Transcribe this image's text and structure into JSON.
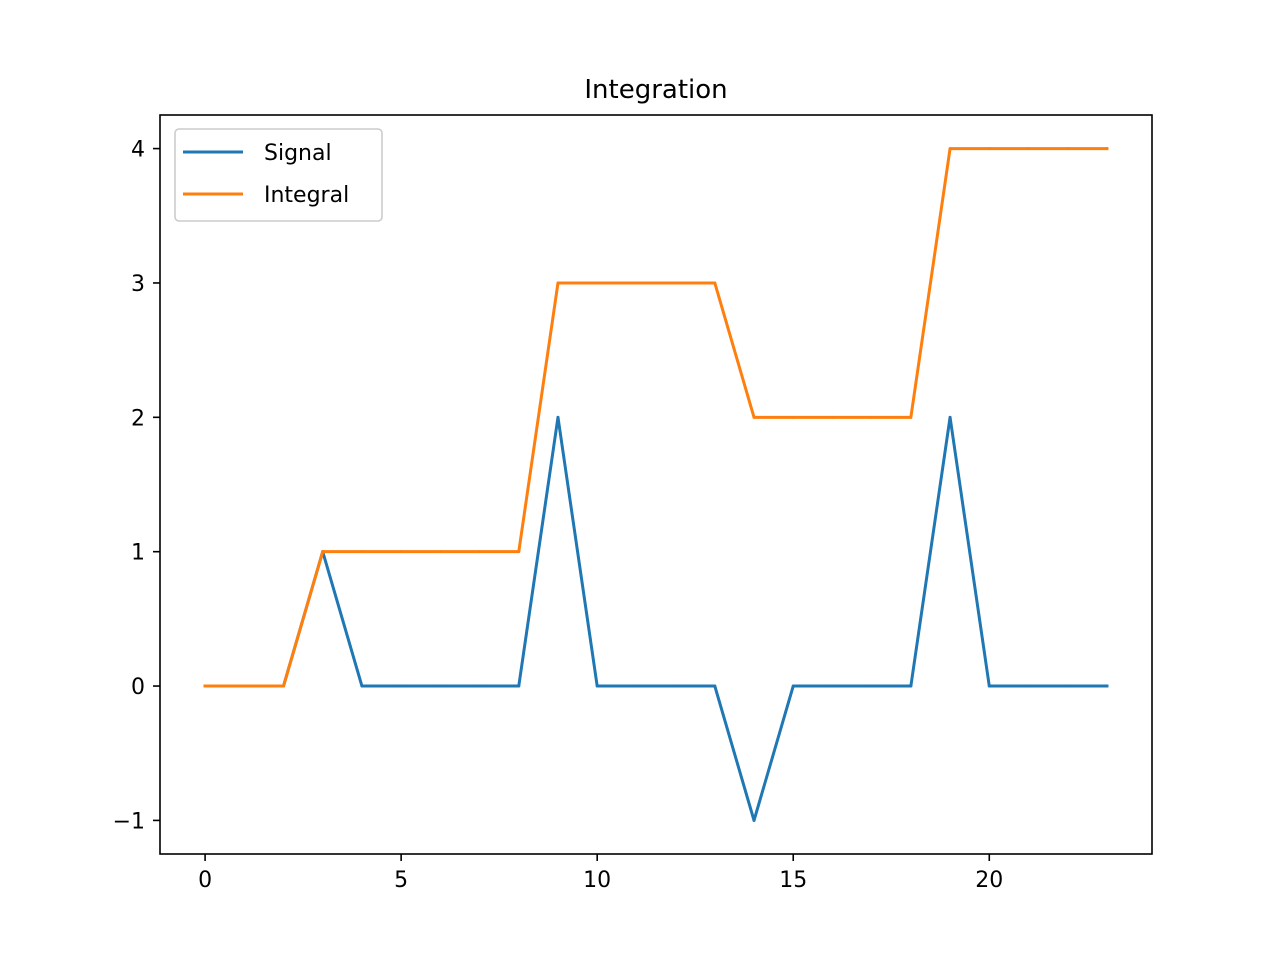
{
  "chart_data": {
    "type": "line",
    "title": "Integration",
    "xlabel": "",
    "ylabel": "",
    "xlim": [
      -1.15,
      24.15
    ],
    "ylim": [
      -1.25,
      4.25
    ],
    "xticks": [
      0,
      5,
      10,
      15,
      20
    ],
    "yticks": [
      -1,
      0,
      1,
      2,
      3,
      4
    ],
    "ytick_labels": [
      "−1",
      "0",
      "1",
      "2",
      "3",
      "4"
    ],
    "grid": false,
    "legend_position": "top-left",
    "x": [
      0,
      1,
      2,
      3,
      4,
      5,
      6,
      7,
      8,
      9,
      10,
      11,
      12,
      13,
      14,
      15,
      16,
      17,
      18,
      19,
      20,
      21,
      22,
      23
    ],
    "series": [
      {
        "name": "Signal",
        "color": "#1f77b4",
        "values": [
          0,
          0,
          0,
          1,
          0,
          0,
          0,
          0,
          0,
          2,
          0,
          0,
          0,
          0,
          -1,
          0,
          0,
          0,
          0,
          2,
          0,
          0,
          0,
          0
        ]
      },
      {
        "name": "Integral",
        "color": "#ff7f0e",
        "values": [
          0,
          0,
          0,
          1,
          1,
          1,
          1,
          1,
          1,
          3,
          3,
          3,
          3,
          3,
          2,
          2,
          2,
          2,
          2,
          4,
          4,
          4,
          4,
          4
        ]
      }
    ]
  }
}
